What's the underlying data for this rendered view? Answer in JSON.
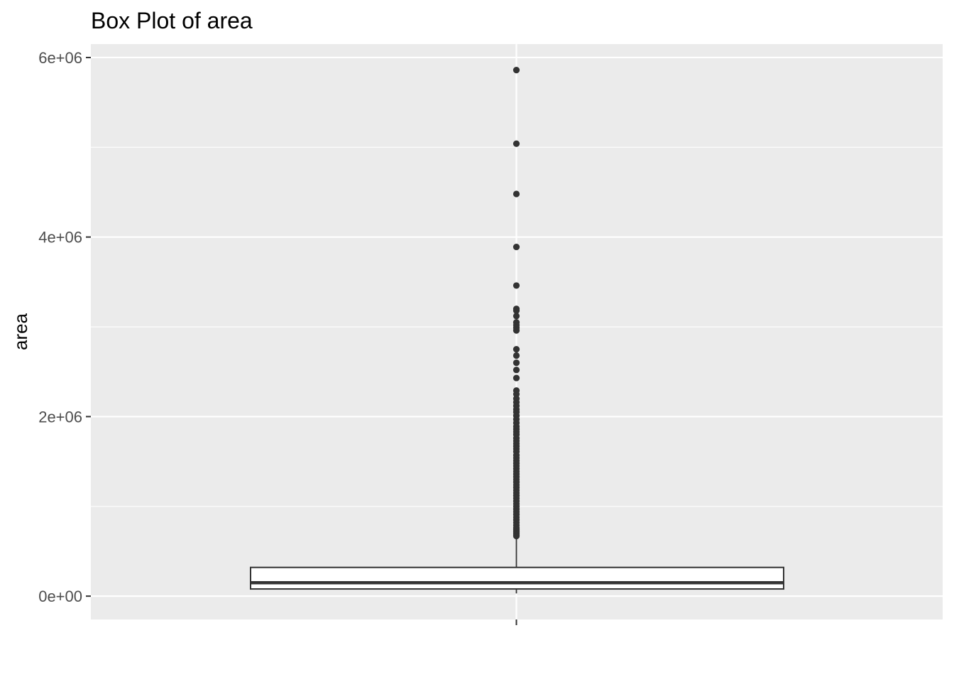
{
  "chart_data": {
    "type": "box",
    "title": "Box Plot of area",
    "xlabel": "",
    "ylabel": "area",
    "ylim": [
      -260000,
      6150000
    ],
    "y_ticks": [
      {
        "value": 0,
        "label": "0e+00"
      },
      {
        "value": 2000000,
        "label": "2e+06"
      },
      {
        "value": 4000000,
        "label": "4e+06"
      },
      {
        "value": 6000000,
        "label": "6e+06"
      }
    ],
    "y_minor_ticks": [
      1000000,
      3000000,
      5000000
    ],
    "grid": true,
    "box": {
      "min": 30000,
      "q1": 80000,
      "median": 150000,
      "q3": 320000,
      "whisker_high": 660000
    },
    "outliers": [
      5860000,
      5040000,
      4480000,
      3890000,
      3460000,
      3200000,
      3180000,
      3120000,
      3050000,
      3020000,
      2990000,
      2960000,
      2750000,
      2680000,
      2600000,
      2520000,
      2430000,
      2290000,
      2250000,
      2200000,
      2160000,
      2120000,
      2080000,
      2050000,
      2010000,
      1970000,
      1930000,
      1890000,
      1860000,
      1830000,
      1800000,
      1760000,
      1730000,
      1700000,
      1670000,
      1640000,
      1610000,
      1570000,
      1540000,
      1510000,
      1480000,
      1450000,
      1420000,
      1390000,
      1360000,
      1330000,
      1300000,
      1270000,
      1240000,
      1210000,
      1180000,
      1150000,
      1120000,
      1090000,
      1060000,
      1030000,
      1000000,
      970000,
      940000,
      910000,
      880000,
      850000,
      820000,
      790000,
      760000,
      740000,
      720000,
      700000,
      680000,
      670000
    ],
    "colors": {
      "panel_bg": "#ebebeb",
      "grid": "#ffffff",
      "box_line": "#333333",
      "box_fill": "#ffffff",
      "point": "#333333",
      "tick": "#333333"
    }
  }
}
